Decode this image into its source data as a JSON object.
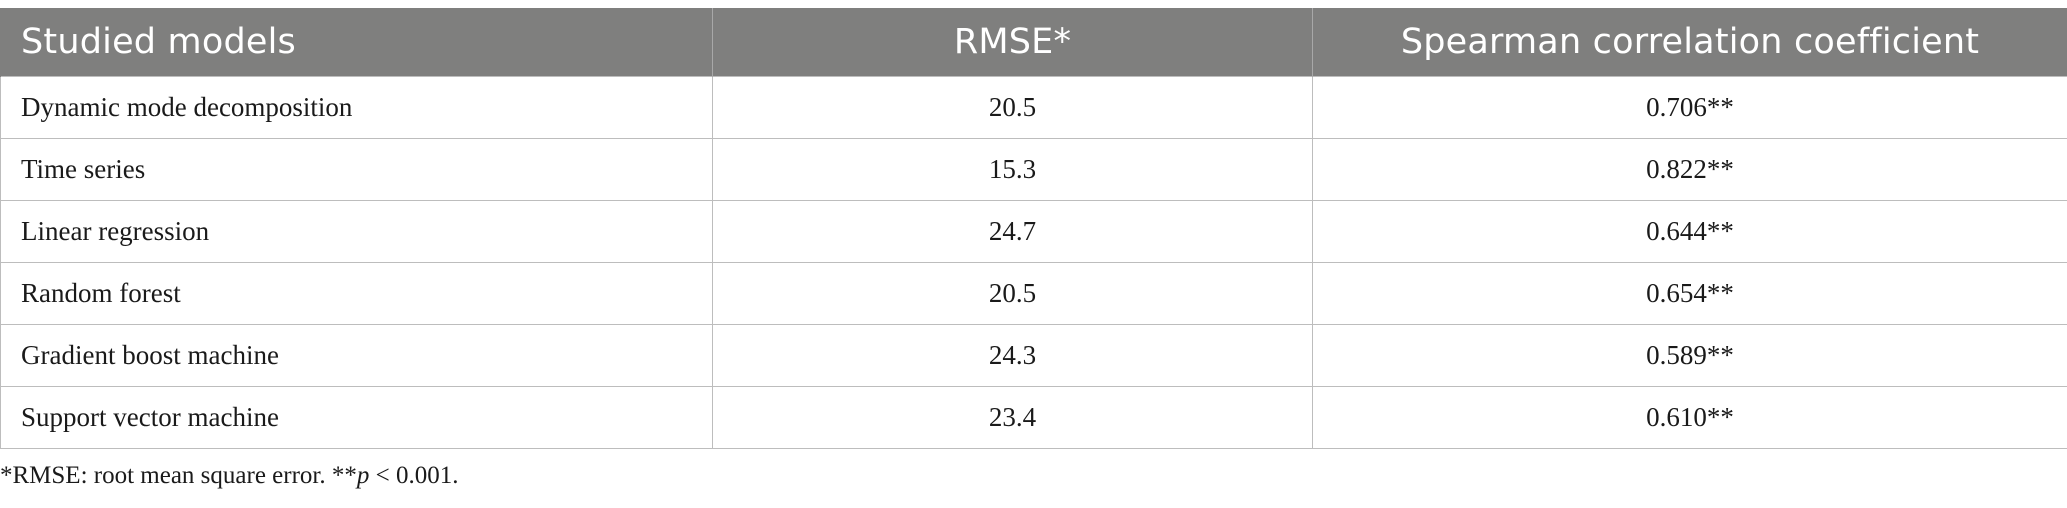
{
  "table": {
    "headers": [
      "Studied models",
      "RMSE*",
      "Spearman correlation coefficient"
    ],
    "rows": [
      [
        "Dynamic mode decomposition",
        "20.5",
        "0.706**"
      ],
      [
        "Time series",
        "15.3",
        "0.822**"
      ],
      [
        "Linear regression",
        "24.7",
        "0.644**"
      ],
      [
        "Random forest",
        "20.5",
        "0.654**"
      ],
      [
        "Gradient boost machine",
        "24.3",
        "0.589**"
      ],
      [
        "Support vector machine",
        "23.4",
        "0.610**"
      ]
    ]
  },
  "footnote": {
    "part1": "*RMSE: root mean square error. **",
    "italic": "p",
    "part2": " < 0.001."
  },
  "colors": {
    "header_bg": "#7f7f7e",
    "header_text": "#ffffff",
    "grid": "#bdbdbd"
  }
}
